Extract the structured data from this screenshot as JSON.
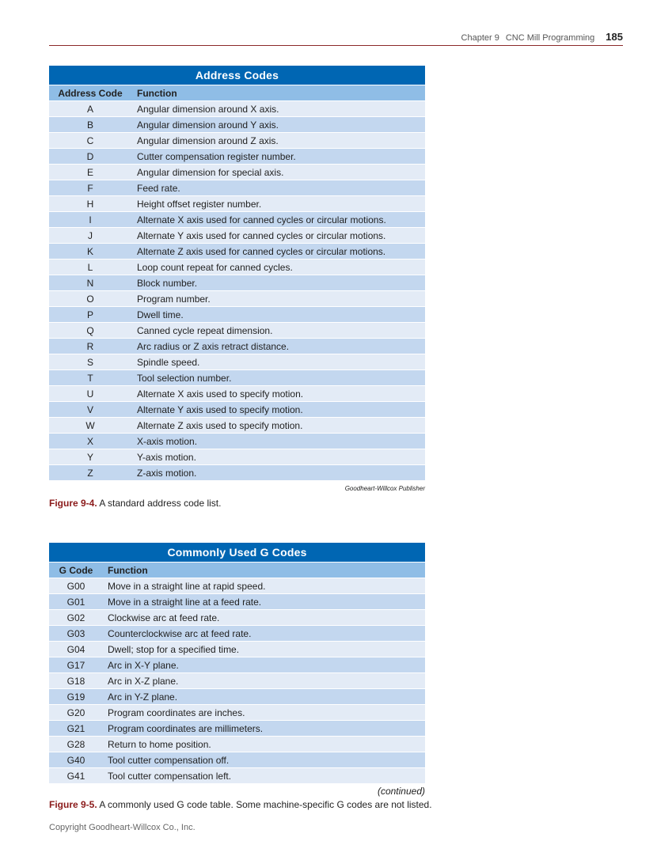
{
  "header": {
    "chapter": "Chapter 9",
    "chapter_title": "CNC Mill Programming",
    "page_number": "185"
  },
  "table1": {
    "title": "Address Codes",
    "col1": "Address Code",
    "col2": "Function",
    "rows": [
      [
        "A",
        "Angular dimension around X axis."
      ],
      [
        "B",
        "Angular dimension around Y axis."
      ],
      [
        "C",
        "Angular dimension around Z axis."
      ],
      [
        "D",
        "Cutter compensation register number."
      ],
      [
        "E",
        "Angular dimension for special axis."
      ],
      [
        "F",
        "Feed rate."
      ],
      [
        "H",
        "Height offset register number."
      ],
      [
        "I",
        "Alternate X axis used for canned cycles or circular motions."
      ],
      [
        "J",
        "Alternate Y axis used for canned cycles or circular motions."
      ],
      [
        "K",
        "Alternate Z axis used for canned cycles or circular motions."
      ],
      [
        "L",
        "Loop count repeat for canned cycles."
      ],
      [
        "N",
        "Block number."
      ],
      [
        "O",
        "Program number."
      ],
      [
        "P",
        "Dwell time."
      ],
      [
        "Q",
        "Canned cycle repeat dimension."
      ],
      [
        "R",
        "Arc radius or Z axis retract distance."
      ],
      [
        "S",
        "Spindle speed."
      ],
      [
        "T",
        "Tool selection number."
      ],
      [
        "U",
        "Alternate X axis used to specify motion."
      ],
      [
        "V",
        "Alternate Y axis used to specify motion."
      ],
      [
        "W",
        "Alternate Z axis used to specify motion."
      ],
      [
        "X",
        "X-axis motion."
      ],
      [
        "Y",
        "Y-axis motion."
      ],
      [
        "Z",
        "Z-axis motion."
      ]
    ]
  },
  "figure1": {
    "credit": "Goodheart-Willcox Publisher",
    "label": "Figure 9-4.",
    "caption": " A standard address code list."
  },
  "table2": {
    "title": "Commonly Used G Codes",
    "col1": "G Code",
    "col2": "Function",
    "rows": [
      [
        "G00",
        "Move in a straight line at rapid speed."
      ],
      [
        "G01",
        "Move in a straight line at a feed rate."
      ],
      [
        "G02",
        "Clockwise arc at feed rate."
      ],
      [
        "G03",
        "Counterclockwise arc at feed rate."
      ],
      [
        "G04",
        "Dwell; stop for a specified time."
      ],
      [
        "G17",
        "Arc in X-Y plane."
      ],
      [
        "G18",
        "Arc in X-Z plane."
      ],
      [
        "G19",
        "Arc in Y-Z plane."
      ],
      [
        "G20",
        "Program coordinates are inches."
      ],
      [
        "G21",
        "Program coordinates are millimeters."
      ],
      [
        "G28",
        "Return to home position."
      ],
      [
        "G40",
        "Tool cutter compensation off."
      ],
      [
        "G41",
        "Tool cutter compensation left."
      ]
    ]
  },
  "figure2": {
    "continued": "(continued)",
    "label": "Figure 9-5.",
    "caption": " A commonly used G code table. Some machine-specific G codes are not listed."
  },
  "footer": {
    "copyright": "Copyright Goodheart-Willcox Co., Inc."
  }
}
